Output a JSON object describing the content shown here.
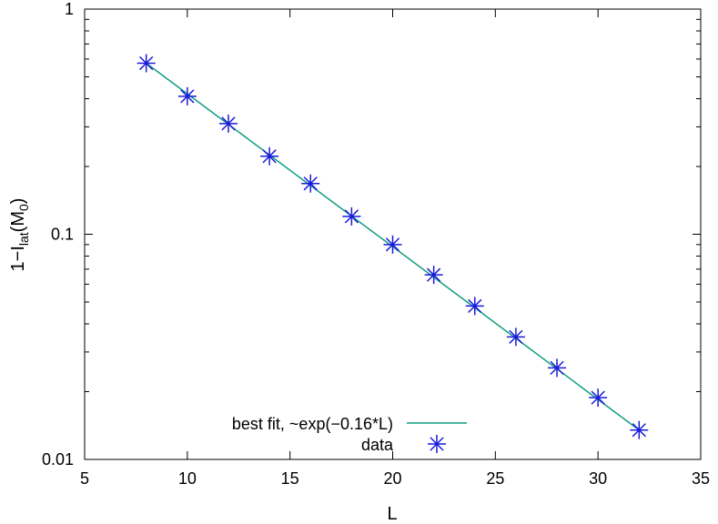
{
  "chart_data": {
    "type": "scatter",
    "title": "",
    "xlabel": "L",
    "ylabel": {
      "base": "1−I",
      "sub1": "lat",
      "mid": "(M",
      "sub2": "0",
      "end": ")"
    },
    "xlim": [
      5,
      35
    ],
    "ylim": [
      0.01,
      1
    ],
    "yscale": "log",
    "grid": false,
    "legend_position": "bottom-right",
    "x_ticks": [
      5,
      10,
      15,
      20,
      25,
      30,
      35
    ],
    "x_tick_labels": [
      "5",
      "10",
      "15",
      "20",
      "25",
      "30",
      "35"
    ],
    "y_ticks": [
      0.01,
      0.1,
      1
    ],
    "y_tick_labels": [
      "0.01",
      "0.1",
      "1"
    ],
    "series": [
      {
        "name": "data",
        "kind": "points",
        "marker": "asterisk",
        "color": "#1a1adb",
        "x": [
          8,
          10,
          12,
          14,
          16,
          18,
          20,
          22,
          24,
          26,
          28,
          30,
          32
        ],
        "y": [
          0.575,
          0.41,
          0.31,
          0.222,
          0.168,
          0.12,
          0.09,
          0.066,
          0.048,
          0.035,
          0.0255,
          0.0188,
          0.0135
        ]
      },
      {
        "name": "best fit, ~exp(−0.16*L)",
        "kind": "line",
        "color": "#0d9e80",
        "x": [
          8,
          32
        ],
        "y": [
          0.575,
          0.0135
        ]
      }
    ]
  }
}
